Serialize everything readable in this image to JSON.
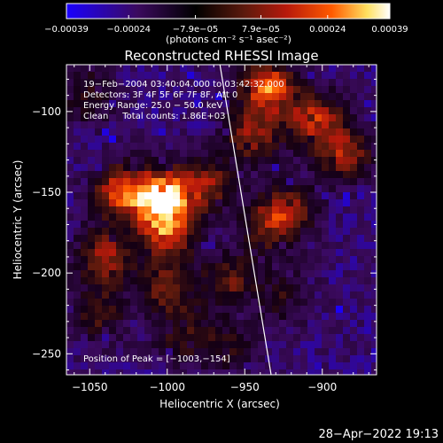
{
  "chart_data": {
    "type": "heatmap",
    "title": "Reconstructed RHESSI Image",
    "xlabel": "Heliocentric X (arcsec)",
    "ylabel": "Heliocentric Y (arcsec)",
    "xlim": [
      -1065,
      -865
    ],
    "ylim": [
      -263,
      -71
    ],
    "xticks": [
      -1050,
      -1000,
      -950,
      -900
    ],
    "xtick_labels": [
      "−1050",
      "−1000",
      "−950",
      "−900"
    ],
    "yticks": [
      -100,
      -150,
      -200,
      -250
    ],
    "ytick_labels": [
      "−100",
      "−150",
      "−200",
      "−250"
    ],
    "colorbar": {
      "range": [
        -0.00039,
        0.00039
      ],
      "tick_values": [
        -0.00039,
        -0.00024,
        -7.9e-05,
        7.9e-05,
        0.00024,
        0.00039
      ],
      "tick_labels": [
        "−0.00039",
        "−0.00024",
        "−7.9e−05",
        "7.9e−05",
        "0.00024",
        "0.00039"
      ],
      "unit": "(photons cm⁻² s⁻¹ asec⁻²)",
      "colors": [
        "#1a00ff",
        "#3b0a5e",
        "#000000",
        "#5c1a0d",
        "#b7190b",
        "#ff5a00",
        "#ffe060",
        "#ffffff"
      ]
    },
    "annotations": {
      "line1": "19−Feb−2004 03:40:04.000 to 03:42:32.000",
      "line2": "Detectors: 3F 4F 5F 6F 7F 8F, Att 0",
      "line3": "Energy Range: 25.0 − 50.0 keV",
      "line4": "Clean     Total counts: 1.86E+03",
      "peak": "Position of Peak = [−1003,−154]"
    },
    "peak_position": [
      -1003,
      -154
    ],
    "limb_line": [
      [
        -966,
        -71
      ],
      [
        -933,
        -263
      ]
    ],
    "grid": false,
    "hotspots": [
      {
        "x": -1003,
        "y": -153,
        "level": 1.0
      },
      {
        "x": -1000,
        "y": -175,
        "level": 0.7
      },
      {
        "x": -1030,
        "y": -150,
        "level": 0.75
      },
      {
        "x": -1040,
        "y": -190,
        "level": 0.6
      },
      {
        "x": -975,
        "y": -145,
        "level": 0.55
      },
      {
        "x": -935,
        "y": -85,
        "level": 0.85
      },
      {
        "x": -945,
        "y": -115,
        "level": 0.55
      },
      {
        "x": -905,
        "y": -105,
        "level": 0.65
      },
      {
        "x": -885,
        "y": -125,
        "level": 0.6
      },
      {
        "x": -935,
        "y": -170,
        "level": 0.5
      },
      {
        "x": -920,
        "y": -160,
        "level": 0.45
      },
      {
        "x": -1000,
        "y": -210,
        "level": 0.5
      },
      {
        "x": -960,
        "y": -205,
        "level": 0.45
      },
      {
        "x": -1045,
        "y": -225,
        "level": 0.4
      },
      {
        "x": -990,
        "y": -240,
        "level": 0.35
      },
      {
        "x": -960,
        "y": -245,
        "level": 0.3
      },
      {
        "x": -1050,
        "y": -90,
        "level": 0.35
      },
      {
        "x": -925,
        "y": -215,
        "level": 0.3
      }
    ]
  },
  "footer": {
    "timestamp": "28−Apr−2022 19:13"
  }
}
